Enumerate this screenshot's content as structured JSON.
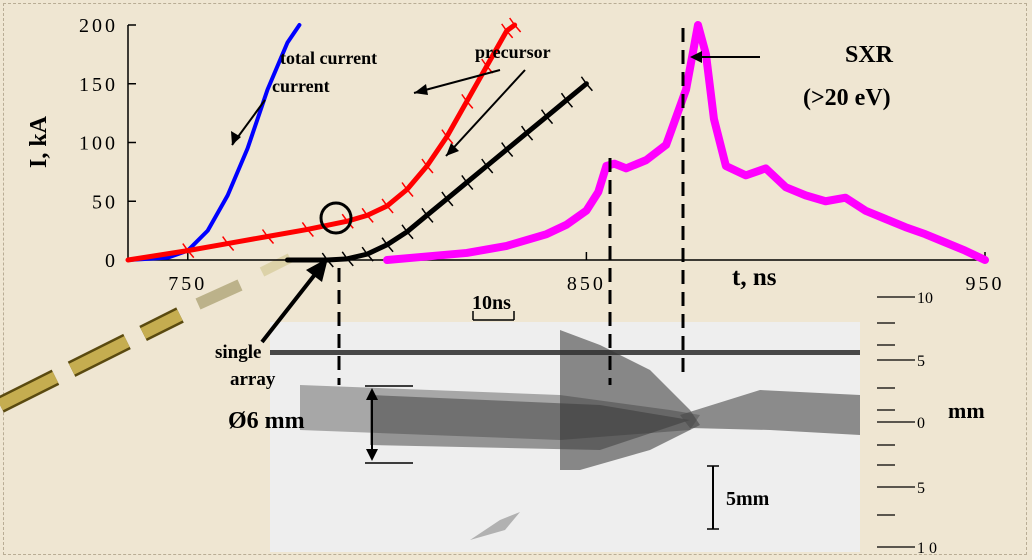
{
  "chart_data": {
    "type": "line",
    "ylabel": "I, kA",
    "xlabel": "t, ns",
    "xlim": [
      735,
      950
    ],
    "ylim": [
      0,
      200
    ],
    "x_ticks": [
      "750",
      "850",
      "950"
    ],
    "y_ticks": [
      "0",
      "50",
      "100",
      "150",
      "200"
    ],
    "series": [
      {
        "name": "total current",
        "color": "#0000ff",
        "x": [
          735,
          745,
          750,
          755,
          760,
          765,
          770,
          775,
          778
        ],
        "y": [
          0,
          2,
          8,
          25,
          55,
          95,
          145,
          185,
          200
        ]
      },
      {
        "name": "precursor (single array)",
        "color": "#ff0000",
        "x": [
          735,
          750,
          760,
          770,
          780,
          790,
          795,
          800,
          805,
          810,
          815,
          820,
          825,
          830,
          832
        ],
        "y": [
          0,
          8,
          14,
          20,
          26,
          33,
          38,
          46,
          60,
          80,
          105,
          135,
          165,
          195,
          200
        ]
      },
      {
        "name": "precursor",
        "color": "#000000",
        "x": [
          775,
          785,
          790,
          795,
          800,
          805,
          810,
          815,
          820,
          825,
          830,
          835,
          840,
          845,
          850
        ],
        "y": [
          0,
          0,
          1,
          5,
          13,
          24,
          38,
          52,
          66,
          80,
          94,
          108,
          122,
          136,
          150
        ]
      },
      {
        "name": "SXR (>20 eV)",
        "color": "#ff00ff",
        "x": [
          800,
          820,
          830,
          840,
          845,
          850,
          853,
          855,
          857,
          860,
          865,
          870,
          875,
          878,
          880,
          882,
          885,
          890,
          895,
          900,
          905,
          910,
          915,
          920,
          925,
          930,
          935,
          940,
          945,
          950
        ],
        "y": [
          0,
          6,
          12,
          22,
          30,
          42,
          58,
          80,
          82,
          78,
          85,
          98,
          145,
          200,
          175,
          120,
          80,
          72,
          78,
          62,
          55,
          50,
          53,
          42,
          35,
          28,
          22,
          15,
          8,
          0
        ]
      }
    ],
    "annotations": [
      "total current",
      "precursor",
      "SXR",
      "(>20 eV)",
      "single",
      "array",
      "Ø6 mm",
      "10ns",
      "5mm",
      "mm"
    ],
    "image_scale_ticks": [
      "10",
      "5",
      "0",
      "5",
      "1 0"
    ]
  }
}
